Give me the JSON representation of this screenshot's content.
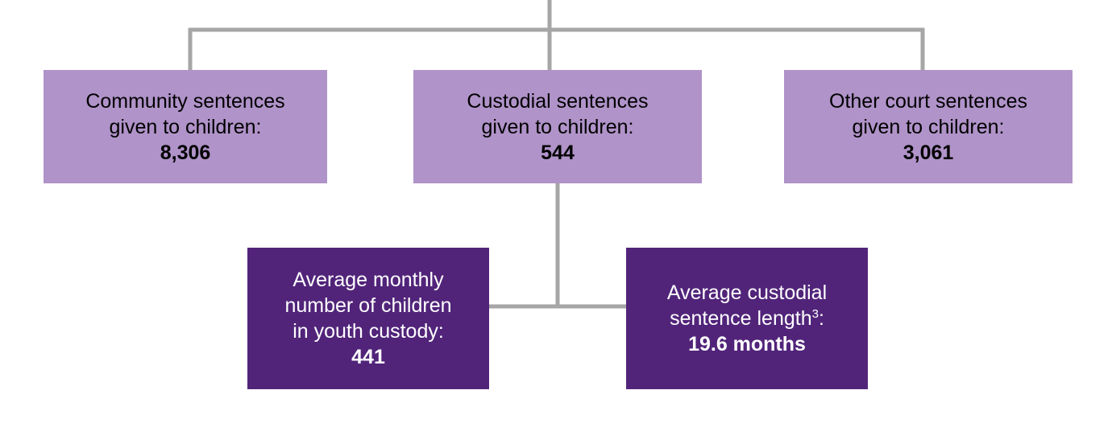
{
  "colors": {
    "light_box": "#b093c9",
    "dark_box": "#51247a",
    "connector": "#a6a6a6"
  },
  "boxes": {
    "community": {
      "line1": "Community sentences",
      "line2": "given to children:",
      "value": "8,306"
    },
    "custodial": {
      "line1": "Custodial sentences",
      "line2": "given to children:",
      "value": "544"
    },
    "other": {
      "line1": "Other court sentences",
      "line2": "given to children:",
      "value": "3,061"
    },
    "monthly_custody": {
      "line1": "Average monthly",
      "line2": "number of children",
      "line3": "in youth custody:",
      "value": "441"
    },
    "sentence_length": {
      "line1": "Average custodial",
      "line2": "sentence length",
      "footnote": "3",
      "suffix": ":",
      "value": "19.6 months"
    }
  }
}
